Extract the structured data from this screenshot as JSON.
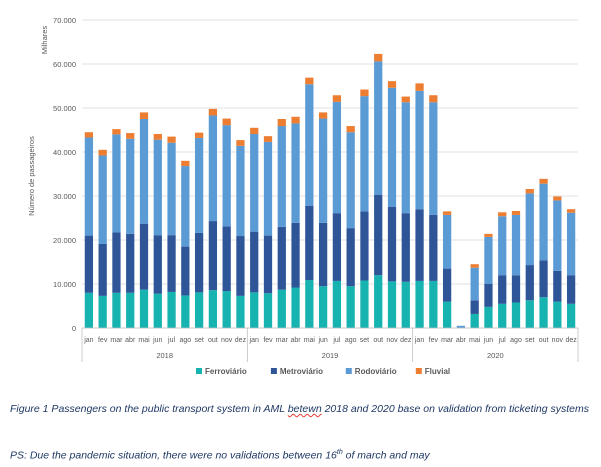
{
  "chart_data": {
    "type": "bar",
    "stacked": true,
    "title": "",
    "ylabel": "Número de passageiros",
    "yunit": "Milhares",
    "ylim": [
      0,
      70000
    ],
    "ytick_step": 10000,
    "ytick_labels": [
      "0",
      "10.000",
      "20.000",
      "30.000",
      "40.000",
      "50.000",
      "60.000",
      "70.000"
    ],
    "grid": true,
    "legend_position": "bottom",
    "groups": [
      {
        "label": "2018",
        "months": [
          "jan",
          "fev",
          "mar",
          "abr",
          "mai",
          "jun",
          "jul",
          "ago",
          "set",
          "out",
          "nov",
          "dez"
        ]
      },
      {
        "label": "2019",
        "months": [
          "jan",
          "fev",
          "mar",
          "abr",
          "mai",
          "jun",
          "jul",
          "ago",
          "set",
          "out",
          "nov",
          "dez"
        ]
      },
      {
        "label": "2020",
        "months": [
          "jan",
          "fev",
          "mar",
          "abr",
          "mai",
          "jun",
          "jul",
          "ago",
          "set",
          "out",
          "nov",
          "dez"
        ]
      }
    ],
    "series": [
      {
        "name": "Ferroviário",
        "color": "#17b3b0",
        "values": [
          8000,
          7300,
          8000,
          8000,
          8700,
          7800,
          8200,
          7400,
          8100,
          8600,
          8400,
          7300,
          8100,
          7900,
          8700,
          9200,
          10900,
          9500,
          10700,
          9500,
          10800,
          12000,
          10600,
          10500,
          10700,
          10700,
          6000,
          0,
          3200,
          4800,
          5500,
          5800,
          6300,
          7000,
          6000,
          5500
        ]
      },
      {
        "name": "Metroviário",
        "color": "#2e5597",
        "values": [
          13000,
          11800,
          13700,
          13400,
          15000,
          13300,
          12900,
          11100,
          13500,
          15700,
          14700,
          13600,
          13800,
          13100,
          14300,
          14700,
          16900,
          14400,
          15400,
          13200,
          15700,
          18300,
          16900,
          15600,
          16300,
          15000,
          7500,
          0,
          3100,
          5200,
          6500,
          6200,
          8000,
          8400,
          7000,
          6500
        ]
      },
      {
        "name": "Rodoviário",
        "color": "#5b9bd5",
        "values": [
          22300,
          20100,
          22300,
          21600,
          23800,
          21700,
          21000,
          18300,
          21600,
          24000,
          23000,
          20500,
          22200,
          21300,
          22900,
          22600,
          27600,
          23700,
          25300,
          21800,
          26200,
          30300,
          27100,
          25200,
          26900,
          25600,
          12200,
          500,
          7400,
          10700,
          13400,
          13700,
          16300,
          17400,
          16000,
          14200
        ]
      },
      {
        "name": "Fluvial",
        "color": "#ed7d31",
        "values": [
          1200,
          1300,
          1200,
          1300,
          1500,
          1300,
          1400,
          1200,
          1200,
          1500,
          1500,
          1300,
          1400,
          1300,
          1600,
          1500,
          1500,
          1400,
          1500,
          1400,
          1500,
          1700,
          1500,
          1300,
          1700,
          1600,
          800,
          0,
          800,
          700,
          900,
          900,
          1000,
          1100,
          900,
          800
        ]
      }
    ]
  },
  "caption": {
    "prefix": "Figure 1 Passengers on the public transport system in AML ",
    "misspelled": "betewn",
    "suffix": " 2018 and 2020 base on validation from ticketing systems"
  },
  "ps": {
    "prefix": "PS: Due the pandemic situation, there were no validations between 16",
    "superscript": "th",
    "suffix": " of march and may"
  }
}
